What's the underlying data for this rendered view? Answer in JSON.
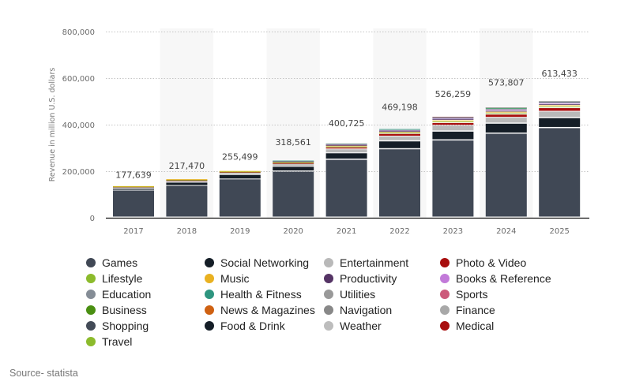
{
  "chart_data": {
    "type": "bar",
    "stacked": true,
    "title": "",
    "xlabel": "",
    "ylabel": "Revenue in million U.S. dollars",
    "ylim": [
      0,
      800000
    ],
    "yticks": [
      0,
      200000,
      400000,
      600000,
      800000
    ],
    "ytick_labels": [
      "0",
      "200,000",
      "400,000",
      "600,000",
      "800,000"
    ],
    "grid": true,
    "legend_position": "bottom",
    "categories": [
      "2017",
      "2018",
      "2019",
      "2020",
      "2021",
      "2022",
      "2023",
      "2024",
      "2025"
    ],
    "totals": [
      177639,
      217470,
      255499,
      318561,
      400725,
      469198,
      526259,
      573807,
      613433
    ],
    "total_labels": [
      "177,639",
      "217,470",
      "255,499",
      "318,561",
      "400,725",
      "469,198",
      "526,259",
      "573,807",
      "613,433"
    ],
    "series": [
      {
        "name": "Games",
        "color": "#404855",
        "values": [
          117000,
          137000,
          165000,
          198000,
          249000,
          294000,
          332000,
          361000,
          385000
        ]
      },
      {
        "name": "Social Networking",
        "color": "#151e27",
        "values": [
          8000,
          14000,
          19000,
          21000,
          28000,
          34000,
          38000,
          43000,
          43000
        ]
      },
      {
        "name": "Entertainment",
        "color": "#b9b9b9",
        "values": [
          7000,
          8000,
          8000,
          11000,
          17000,
          21000,
          26000,
          26000,
          28000
        ]
      },
      {
        "name": "Photo & Video",
        "color": "#a80e0e",
        "values": [
          1000,
          2000,
          4000,
          4000,
          8000,
          11000,
          11000,
          13000,
          15000
        ]
      },
      {
        "name": "Lifestyle",
        "color": "#8cbb2c",
        "values": [
          1000,
          2000,
          2000,
          3000,
          4000,
          5000,
          6000,
          6000,
          6000
        ]
      },
      {
        "name": "Music",
        "color": "#e9b121",
        "values": [
          2000,
          3000,
          3000,
          3000,
          4000,
          5000,
          5000,
          6000,
          6000
        ]
      },
      {
        "name": "Productivity",
        "color": "#553465",
        "values": [
          0,
          0,
          0,
          1500,
          2000,
          2000,
          5000,
          4000,
          5000
        ]
      },
      {
        "name": "Books & Reference",
        "color": "#c27ad9",
        "values": [
          0,
          0,
          0,
          1500,
          2000,
          3000,
          4000,
          5000,
          5000
        ]
      },
      {
        "name": "Education",
        "color": "#858d96",
        "values": [
          0,
          0,
          0,
          1000,
          2000,
          2000,
          2000,
          3000,
          3000
        ]
      },
      {
        "name": "Health & Fitness",
        "color": "#2e957f",
        "values": [
          0,
          0,
          0,
          1500,
          2000,
          4000,
          3000,
          4000,
          2000
        ]
      },
      {
        "name": "Sports",
        "color": "#cc5a7b",
        "values": [
          0,
          0,
          0,
          0,
          0,
          0,
          2000,
          0,
          2000
        ]
      },
      {
        "name": "Business",
        "color": "#4a8f12",
        "values": [
          0,
          0,
          0,
          0,
          0,
          0,
          0,
          2000,
          0
        ]
      },
      {
        "name": "News & Magazines",
        "color": "#cf6112",
        "values": [
          0,
          0,
          0,
          0,
          0,
          0,
          0,
          0,
          0
        ]
      },
      {
        "name": "Utilities",
        "color": "#999999",
        "values": [
          0,
          0,
          0,
          0,
          1000,
          0,
          0,
          1000,
          1000
        ]
      },
      {
        "name": "Finance",
        "color": "#a8a8a8",
        "values": [
          0,
          0,
          0,
          0,
          0,
          0,
          0,
          0,
          0
        ]
      },
      {
        "name": "Shopping",
        "color": "#434b57",
        "values": [
          0,
          0,
          0,
          0,
          0,
          0,
          0,
          0,
          0
        ]
      },
      {
        "name": "Food & Drink",
        "color": "#151e27",
        "values": [
          0,
          0,
          0,
          0,
          0,
          0,
          0,
          0,
          0
        ]
      },
      {
        "name": "Navigation",
        "color": "#888888",
        "values": [
          0,
          0,
          0,
          0,
          0,
          0,
          0,
          0,
          0
        ]
      },
      {
        "name": "Weather",
        "color": "#bdbdbd",
        "values": [
          0,
          0,
          0,
          0,
          0,
          0,
          0,
          0,
          0
        ]
      },
      {
        "name": "Medical",
        "color": "#a80e0e",
        "values": [
          0,
          0,
          0,
          0,
          0,
          0,
          0,
          0,
          0
        ]
      },
      {
        "name": "Travel",
        "color": "#8cbb2c",
        "values": [
          0,
          0,
          0,
          0,
          0,
          0,
          0,
          0,
          0
        ]
      }
    ]
  },
  "legend": {
    "items": [
      {
        "label": "Games",
        "color": "#404855"
      },
      {
        "label": "Social Networking",
        "color": "#151e27"
      },
      {
        "label": "Entertainment",
        "color": "#b9b9b9"
      },
      {
        "label": "Photo & Video",
        "color": "#a80e0e"
      },
      {
        "label": "Lifestyle",
        "color": "#8cbb2c"
      },
      {
        "label": "Music",
        "color": "#e9b121"
      },
      {
        "label": "Productivity",
        "color": "#553465"
      },
      {
        "label": "Books & Reference",
        "color": "#c27ad9"
      },
      {
        "label": "Education",
        "color": "#858d96"
      },
      {
        "label": "Health & Fitness",
        "color": "#2e957f"
      },
      {
        "label": "Utilities",
        "color": "#999999"
      },
      {
        "label": "Sports",
        "color": "#cc5a7b"
      },
      {
        "label": "Business",
        "color": "#4a8f12"
      },
      {
        "label": "News & Magazines",
        "color": "#cf6112"
      },
      {
        "label": "Navigation",
        "color": "#888888"
      },
      {
        "label": "Finance",
        "color": "#a8a8a8"
      },
      {
        "label": "Shopping",
        "color": "#434b57"
      },
      {
        "label": "Food & Drink",
        "color": "#151e27"
      },
      {
        "label": "Weather",
        "color": "#bdbdbd"
      },
      {
        "label": "Medical",
        "color": "#a80e0e"
      },
      {
        "label": "Travel",
        "color": "#8cbb2c"
      }
    ]
  },
  "source": "Source- statista"
}
